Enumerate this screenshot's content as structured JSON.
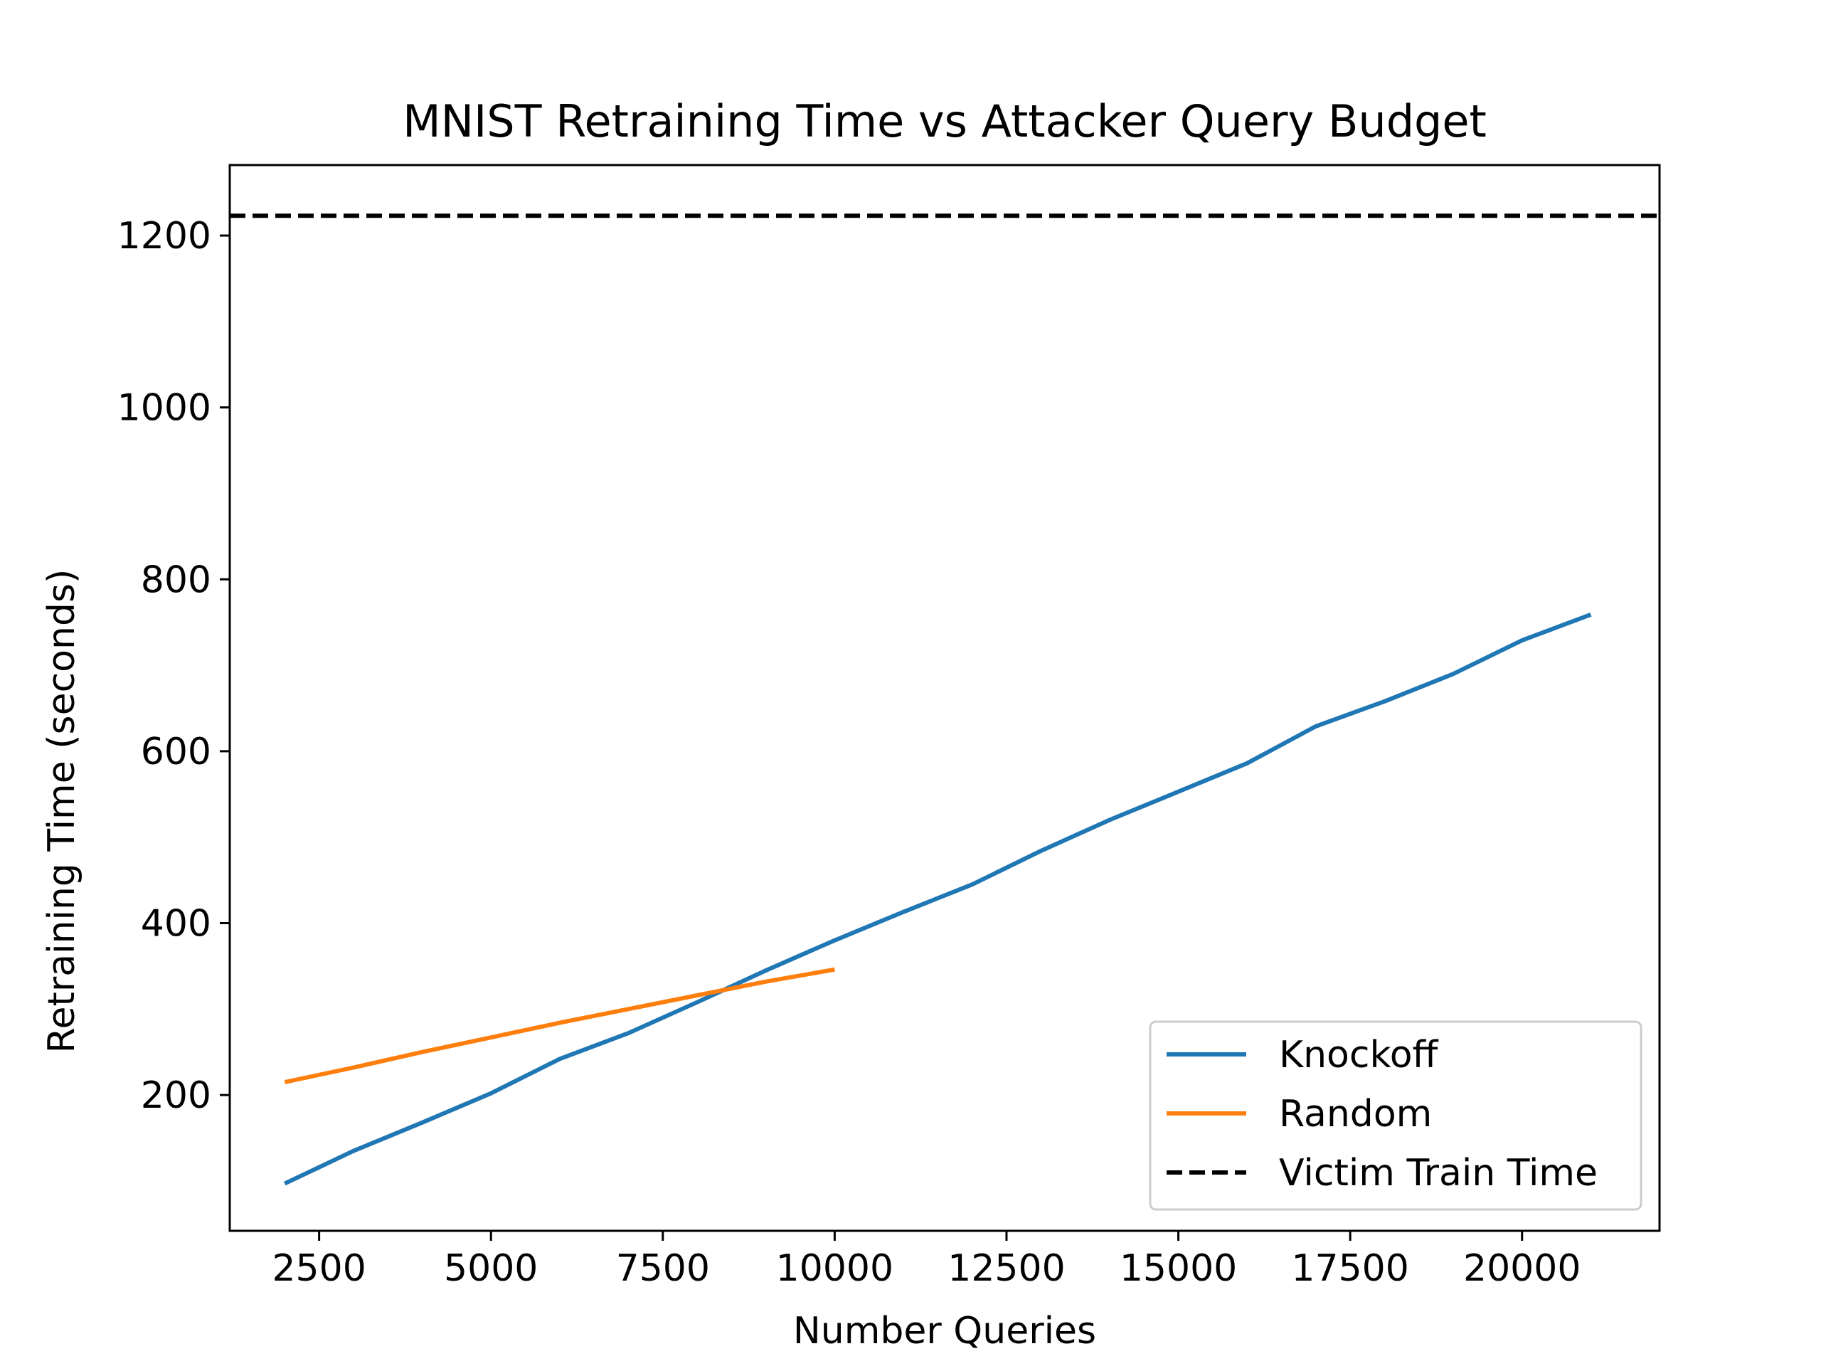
{
  "chart_data": {
    "type": "line",
    "title": "MNIST Retraining Time vs Attacker Query Budget",
    "xlabel": "Number Queries",
    "ylabel": "Retraining Time (seconds)",
    "xlim": [
      1200,
      22000
    ],
    "ylim": [
      42,
      1282
    ],
    "xticks": [
      2500,
      5000,
      7500,
      10000,
      12500,
      15000,
      17500,
      20000
    ],
    "yticks": [
      200,
      400,
      600,
      800,
      1000,
      1200
    ],
    "grid": false,
    "legend_position": "lower-right",
    "series": [
      {
        "name": "Knockoff",
        "color": "#1f77b4",
        "style": "solid",
        "x": [
          2000,
          3000,
          4000,
          5000,
          6000,
          7000,
          8000,
          9000,
          10000,
          11000,
          12000,
          13000,
          14000,
          15000,
          16000,
          17000,
          18000,
          19000,
          20000,
          21000
        ],
        "y": [
          97,
          135,
          168,
          202,
          242,
          272,
          308,
          345,
          380,
          413,
          445,
          484,
          520,
          553,
          586,
          629,
          658,
          690,
          729,
          759
        ]
      },
      {
        "name": "Random",
        "color": "#ff7f0e",
        "style": "solid",
        "x": [
          2000,
          3000,
          4000,
          5000,
          6000,
          7000,
          8000,
          9000,
          10000
        ],
        "y": [
          215,
          232,
          250,
          267,
          284,
          300,
          316,
          332,
          346
        ]
      },
      {
        "name": "Victim Train Time",
        "color": "#000000",
        "style": "dashed",
        "y_constant": 1223
      }
    ]
  }
}
